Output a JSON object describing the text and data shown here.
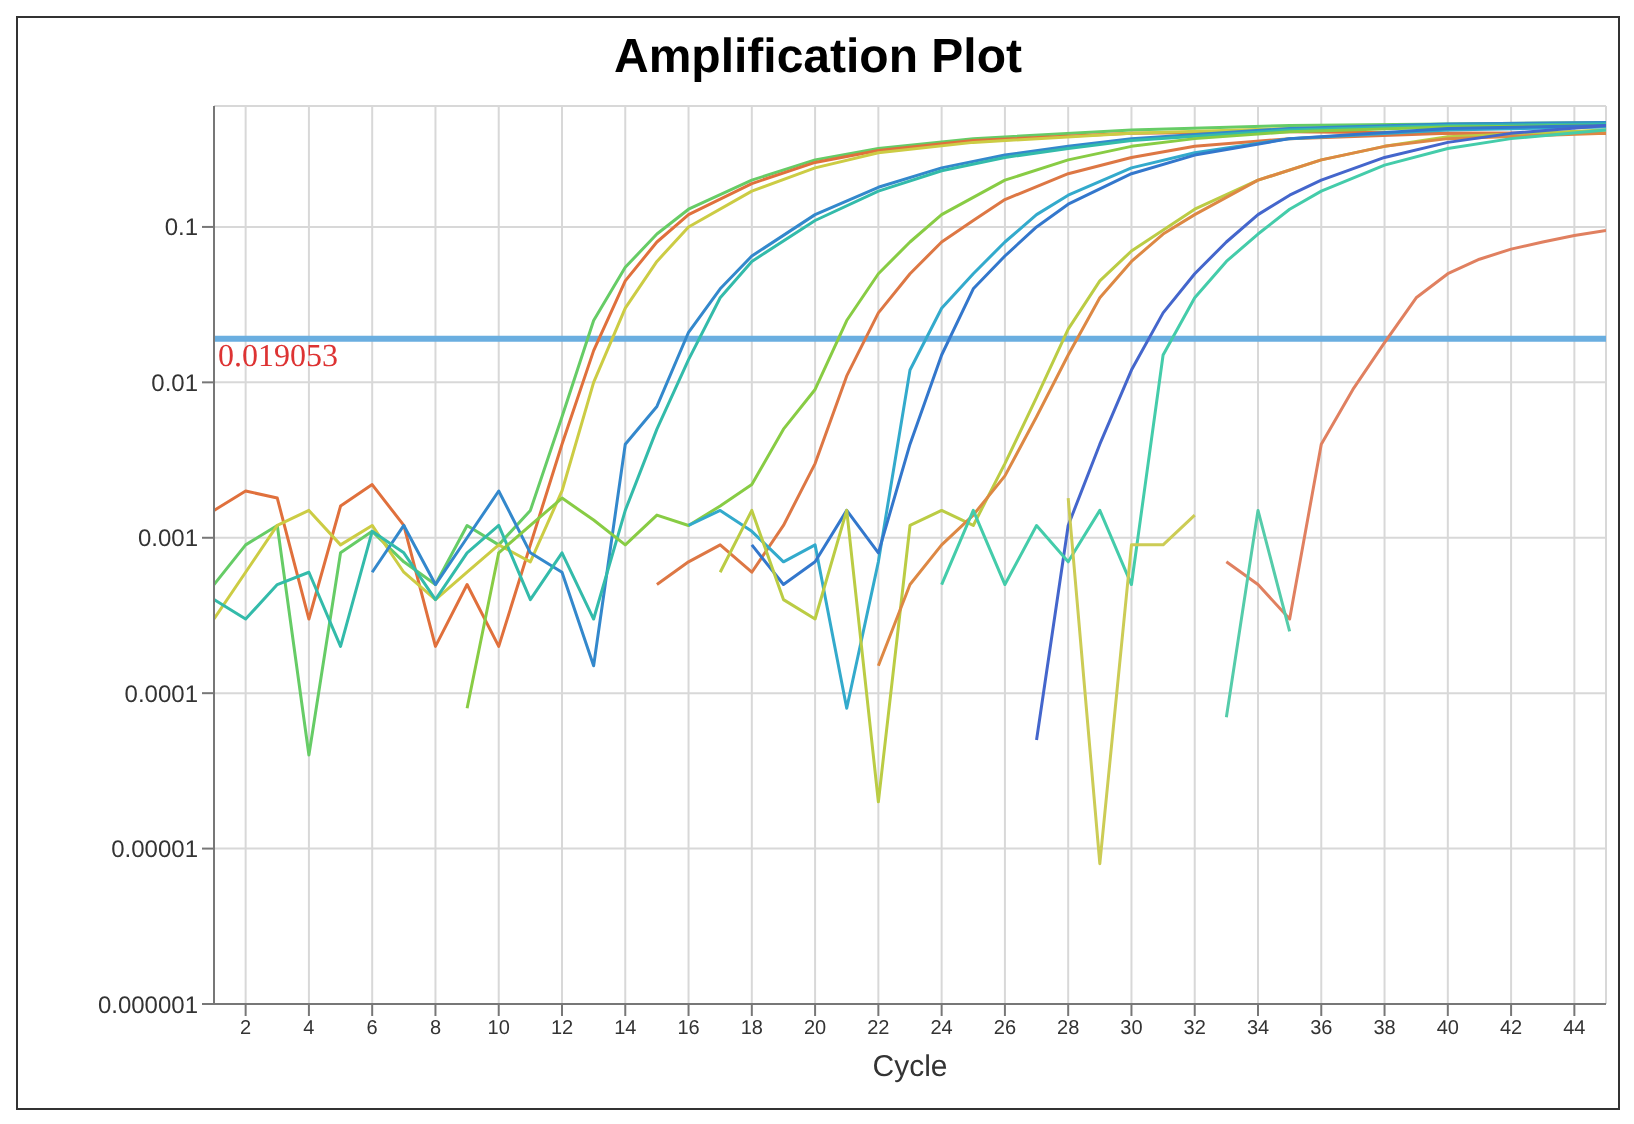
{
  "chart_data": {
    "type": "line",
    "title": "Amplification Plot",
    "xlabel": "Cycle",
    "log": "y",
    "grid": true,
    "marker": "none",
    "line_style": "solid",
    "xlim": [
      1,
      45
    ],
    "xticks": [
      2,
      4,
      6,
      8,
      10,
      12,
      14,
      16,
      18,
      20,
      22,
      24,
      26,
      28,
      30,
      32,
      34,
      36,
      38,
      40,
      42,
      44
    ],
    "ylim": [
      1e-06,
      0.6
    ],
    "yticks": [
      {
        "value": 1e-06,
        "label": "0.000001"
      },
      {
        "value": 1e-05,
        "label": "0.00001"
      },
      0.0001,
      0.001,
      0.01,
      0.1
    ],
    "ref_lines": [
      {
        "axis": "y",
        "value": 0.019053,
        "label": "0.019053",
        "color": "#6aaee0"
      }
    ],
    "series": [
      {
        "color": "#66cc66",
        "x": [
          1,
          2,
          3,
          4,
          5,
          6,
          7,
          8,
          9,
          10,
          11,
          12,
          13,
          14,
          15,
          16,
          18,
          20,
          22,
          25,
          30,
          35,
          40,
          45
        ],
        "values": [
          0.0005,
          0.0009,
          0.0012,
          4e-05,
          0.0008,
          0.0011,
          0.0007,
          0.0005,
          0.0012,
          0.0009,
          0.0015,
          0.006,
          0.025,
          0.055,
          0.09,
          0.13,
          0.2,
          0.27,
          0.32,
          0.37,
          0.42,
          0.45,
          0.46,
          0.47
        ]
      },
      {
        "color": "#e0703c",
        "x": [
          1,
          2,
          3,
          4,
          5,
          6,
          7,
          8,
          9,
          10,
          11,
          12,
          13,
          14,
          15,
          16,
          18,
          20,
          22,
          25,
          30,
          35,
          40,
          45
        ],
        "values": [
          0.0015,
          0.002,
          0.0018,
          0.0003,
          0.0016,
          0.0022,
          0.0012,
          0.0002,
          0.0005,
          0.0002,
          0.0009,
          0.004,
          0.016,
          0.045,
          0.08,
          0.12,
          0.19,
          0.26,
          0.31,
          0.36,
          0.4,
          0.41,
          0.4,
          0.4
        ]
      },
      {
        "color": "#cccc44",
        "x": [
          1,
          2,
          3,
          4,
          5,
          6,
          7,
          8,
          9,
          10,
          11,
          12,
          13,
          14,
          15,
          16,
          18,
          20,
          22,
          25,
          30,
          35,
          40,
          45
        ],
        "values": [
          0.0003,
          0.0006,
          0.0012,
          0.0015,
          0.0009,
          0.0012,
          0.0006,
          0.0004,
          0.0006,
          0.0009,
          0.0007,
          0.002,
          0.01,
          0.03,
          0.06,
          0.1,
          0.17,
          0.24,
          0.3,
          0.35,
          0.4,
          0.43,
          0.44,
          0.45
        ]
      },
      {
        "color": "#3388cc",
        "x": [
          6,
          7,
          8,
          9,
          10,
          11,
          12,
          13,
          14,
          15,
          16,
          17,
          18,
          20,
          22,
          24,
          26,
          28,
          30,
          35,
          40,
          45
        ],
        "values": [
          0.0006,
          0.0012,
          0.0005,
          0.001,
          0.002,
          0.0008,
          0.0006,
          0.00015,
          0.004,
          0.007,
          0.021,
          0.04,
          0.065,
          0.12,
          0.18,
          0.24,
          0.29,
          0.33,
          0.37,
          0.43,
          0.46,
          0.47
        ]
      },
      {
        "color": "#33bbaa",
        "x": [
          1,
          2,
          3,
          4,
          5,
          6,
          7,
          8,
          9,
          10,
          11,
          12,
          13,
          14,
          15,
          16,
          17,
          18,
          20,
          22,
          24,
          26,
          28,
          30,
          35,
          40,
          45
        ],
        "values": [
          0.0004,
          0.0003,
          0.0005,
          0.0006,
          0.0002,
          0.0011,
          0.0008,
          0.0004,
          0.0008,
          0.0012,
          0.0004,
          0.0008,
          0.0003,
          0.0015,
          0.005,
          0.014,
          0.035,
          0.06,
          0.11,
          0.17,
          0.23,
          0.28,
          0.32,
          0.36,
          0.42,
          0.45,
          0.46
        ]
      },
      {
        "color": "#88cc44",
        "x": [
          9,
          10,
          11,
          12,
          13,
          14,
          15,
          16,
          17,
          18,
          19,
          20,
          21,
          22,
          23,
          24,
          26,
          28,
          30,
          32,
          35,
          40,
          45
        ],
        "values": [
          8e-05,
          0.0008,
          0.0012,
          0.0018,
          0.0013,
          0.0009,
          0.0014,
          0.0012,
          0.0016,
          0.0022,
          0.005,
          0.009,
          0.025,
          0.05,
          0.08,
          0.12,
          0.2,
          0.27,
          0.33,
          0.37,
          0.41,
          0.44,
          0.45
        ]
      },
      {
        "color": "#dd7744",
        "x": [
          15,
          16,
          17,
          18,
          19,
          20,
          21,
          22,
          23,
          24,
          25,
          26,
          28,
          30,
          32,
          35,
          40,
          45
        ],
        "values": [
          0.0005,
          0.0007,
          0.0009,
          0.0006,
          0.0012,
          0.003,
          0.011,
          0.028,
          0.05,
          0.08,
          0.11,
          0.15,
          0.22,
          0.28,
          0.33,
          0.37,
          0.4,
          0.4
        ]
      },
      {
        "color": "#33aacc",
        "x": [
          16,
          17,
          18,
          19,
          20,
          21,
          22,
          23,
          24,
          25,
          26,
          27,
          28,
          30,
          32,
          35,
          40,
          45
        ],
        "values": [
          0.0012,
          0.0015,
          0.0011,
          0.0007,
          0.0009,
          8e-05,
          0.0007,
          0.012,
          0.03,
          0.05,
          0.08,
          0.12,
          0.16,
          0.24,
          0.3,
          0.37,
          0.42,
          0.44
        ]
      },
      {
        "color": "#3377cc",
        "x": [
          18,
          19,
          20,
          21,
          22,
          23,
          24,
          25,
          26,
          27,
          28,
          30,
          32,
          35,
          40,
          45
        ],
        "values": [
          0.0009,
          0.0005,
          0.0007,
          0.0015,
          0.0008,
          0.004,
          0.015,
          0.04,
          0.065,
          0.1,
          0.14,
          0.22,
          0.29,
          0.37,
          0.43,
          0.45
        ]
      },
      {
        "color": "#bbcc44",
        "x": [
          17,
          18,
          19,
          20,
          21,
          22,
          23,
          24,
          25,
          26,
          27,
          28,
          29,
          30,
          32,
          34,
          36,
          38,
          40,
          45
        ],
        "values": [
          0.0006,
          0.0015,
          0.0004,
          0.0003,
          0.0015,
          2e-05,
          0.0012,
          0.0015,
          0.0012,
          0.003,
          0.008,
          0.022,
          0.045,
          0.07,
          0.13,
          0.2,
          0.27,
          0.33,
          0.38,
          0.42
        ]
      },
      {
        "color": "#dd8844",
        "x": [
          22,
          23,
          24,
          25,
          26,
          27,
          28,
          29,
          30,
          31,
          32,
          34,
          36,
          38,
          40,
          45
        ],
        "values": [
          0.00015,
          0.0005,
          0.0009,
          0.0014,
          0.0025,
          0.006,
          0.015,
          0.035,
          0.06,
          0.09,
          0.12,
          0.2,
          0.27,
          0.33,
          0.37,
          0.4
        ]
      },
      {
        "color": "#4466cc",
        "x": [
          27,
          28,
          29,
          30,
          31,
          32,
          33,
          34,
          35,
          36,
          38,
          40,
          42,
          45
        ],
        "values": [
          5e-05,
          0.0012,
          0.004,
          0.012,
          0.028,
          0.05,
          0.08,
          0.12,
          0.16,
          0.2,
          0.28,
          0.35,
          0.4,
          0.45
        ]
      },
      {
        "color": "#44ccaa",
        "x": [
          24,
          25,
          26,
          27,
          28,
          29,
          30,
          31,
          32,
          33,
          34,
          35,
          36,
          38,
          40,
          42,
          45
        ],
        "values": [
          0.0005,
          0.0015,
          0.0005,
          0.0012,
          0.0007,
          0.0015,
          0.0005,
          0.015,
          0.035,
          0.06,
          0.09,
          0.13,
          0.17,
          0.25,
          0.32,
          0.37,
          0.42
        ]
      },
      {
        "color": "#e08060",
        "x": [
          33,
          34,
          35,
          36,
          37,
          38,
          39,
          40,
          41,
          42,
          43,
          44,
          45
        ],
        "values": [
          0.0007,
          0.0005,
          0.0003,
          0.004,
          0.009,
          0.018,
          0.035,
          0.05,
          0.062,
          0.072,
          0.08,
          0.088,
          0.095
        ]
      },
      {
        "color": "#cccc55",
        "x": [
          28,
          29,
          30,
          31,
          32
        ],
        "values": [
          0.0018,
          8e-06,
          0.0009,
          0.0009,
          0.0014
        ]
      },
      {
        "color": "#55ccaa",
        "x": [
          33,
          34,
          35
        ],
        "values": [
          7e-05,
          0.0015,
          0.00025
        ]
      }
    ]
  }
}
